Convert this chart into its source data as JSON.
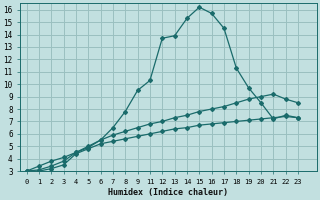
{
  "xlabel": "Humidex (Indice chaleur)",
  "background_color": "#c2e0e0",
  "grid_color": "#9abfbf",
  "line_color": "#1a6b6b",
  "xlim": [
    -0.5,
    23.5
  ],
  "ylim": [
    3,
    16.5
  ],
  "xtick_positions": [
    0,
    1,
    2,
    3,
    4,
    5,
    6,
    7,
    8,
    9,
    10,
    11,
    12,
    13,
    14,
    15,
    16,
    17,
    18,
    19,
    20,
    21,
    22
  ],
  "xtick_labels": [
    "0",
    "1",
    "2",
    "3",
    "4",
    "5",
    "6",
    "7",
    "8",
    "9",
    "11",
    "12",
    "13",
    "14",
    "15",
    "16",
    "17",
    "18",
    "19",
    "20",
    "21",
    "22",
    "23"
  ],
  "yticks": [
    3,
    4,
    5,
    6,
    7,
    8,
    9,
    10,
    11,
    12,
    13,
    14,
    15,
    16
  ],
  "curve1_x": [
    0,
    1,
    2,
    3,
    4,
    5,
    6,
    7,
    8,
    9,
    10,
    11,
    12,
    13,
    14,
    15,
    16,
    17,
    18,
    19,
    20,
    21,
    22
  ],
  "curve1_y": [
    3.0,
    3.4,
    3.8,
    4.1,
    4.5,
    4.9,
    5.5,
    6.5,
    7.8,
    9.5,
    10.3,
    13.7,
    13.9,
    15.3,
    16.2,
    15.7,
    14.5,
    11.3,
    9.7,
    8.5,
    7.2,
    7.5,
    7.3
  ],
  "curve2_x": [
    0,
    1,
    2,
    3,
    4,
    5,
    6,
    7,
    8,
    9,
    10,
    11,
    12,
    13,
    14,
    15,
    16,
    17,
    18,
    19,
    20,
    21,
    22
  ],
  "curve2_y": [
    3.0,
    3.1,
    3.4,
    3.8,
    4.5,
    5.0,
    5.5,
    5.9,
    6.2,
    6.5,
    6.8,
    7.0,
    7.3,
    7.5,
    7.8,
    8.0,
    8.2,
    8.5,
    8.8,
    9.0,
    9.2,
    8.8,
    8.5
  ],
  "curve3_x": [
    0,
    1,
    2,
    3,
    4,
    5,
    6,
    7,
    8,
    9,
    10,
    11,
    12,
    13,
    14,
    15,
    16,
    17,
    18,
    19,
    20,
    21,
    22
  ],
  "curve3_y": [
    3.0,
    3.0,
    3.2,
    3.5,
    4.4,
    4.8,
    5.2,
    5.4,
    5.6,
    5.8,
    6.0,
    6.2,
    6.4,
    6.5,
    6.7,
    6.8,
    6.9,
    7.0,
    7.1,
    7.2,
    7.3,
    7.4,
    7.3
  ]
}
